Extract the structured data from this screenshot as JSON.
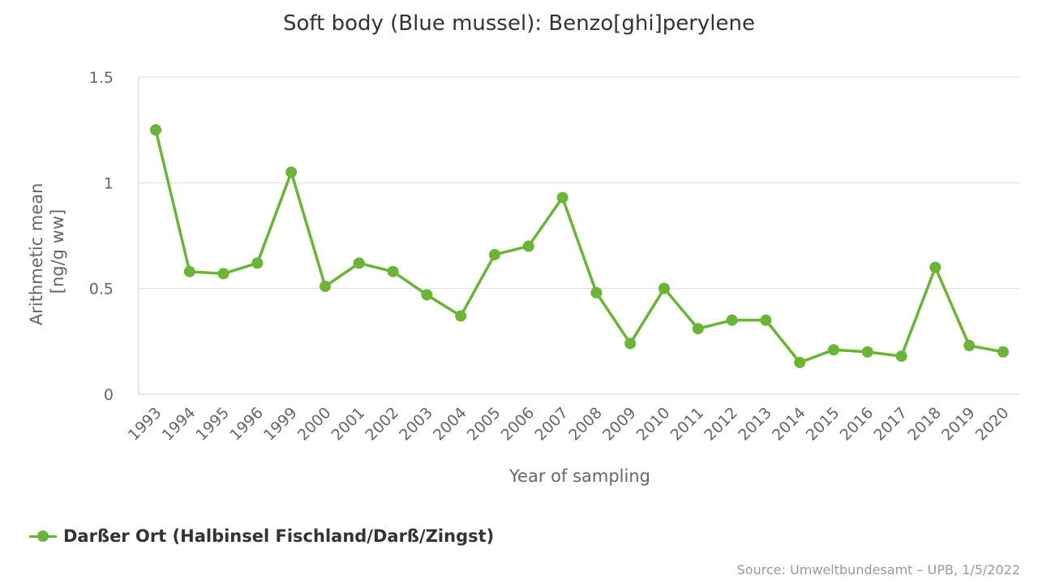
{
  "chart_data": {
    "type": "line",
    "title": "Soft body (Blue mussel): Benzo[ghi]perylene",
    "xlabel": "Year of sampling",
    "ylabel_lines": [
      "Arithmetic mean",
      "[ng/g ww]"
    ],
    "ylim": [
      0,
      1.5
    ],
    "yticks": [
      {
        "value": 0,
        "label": "0"
      },
      {
        "value": 0.5,
        "label": "0.5"
      },
      {
        "value": 1,
        "label": "1"
      },
      {
        "value": 1.5,
        "label": "1.5"
      }
    ],
    "categories": [
      "1993",
      "1994",
      "1995",
      "1996",
      "1999",
      "2000",
      "2001",
      "2002",
      "2003",
      "2004",
      "2005",
      "2006",
      "2007",
      "2008",
      "2009",
      "2010",
      "2011",
      "2012",
      "2013",
      "2014",
      "2015",
      "2016",
      "2017",
      "2018",
      "2019",
      "2020"
    ],
    "series": [
      {
        "name": "Darßer Ort (Halbinsel Fischland/Darß/Zingst)",
        "color": "#6ab535",
        "values": [
          1.25,
          0.58,
          0.57,
          0.62,
          1.05,
          0.51,
          0.62,
          0.58,
          0.47,
          0.37,
          0.66,
          0.7,
          0.93,
          0.48,
          0.24,
          0.5,
          0.31,
          0.35,
          0.35,
          0.15,
          0.21,
          0.2,
          0.18,
          0.6,
          0.23,
          0.2
        ]
      }
    ],
    "grid": true,
    "legend_position": "bottom-left"
  },
  "legend": {
    "label": "Darßer Ort (Halbinsel Fischland/Darß/Zingst)"
  },
  "source": "Source: Umweltbundesamt – UPB, 1/5/2022"
}
